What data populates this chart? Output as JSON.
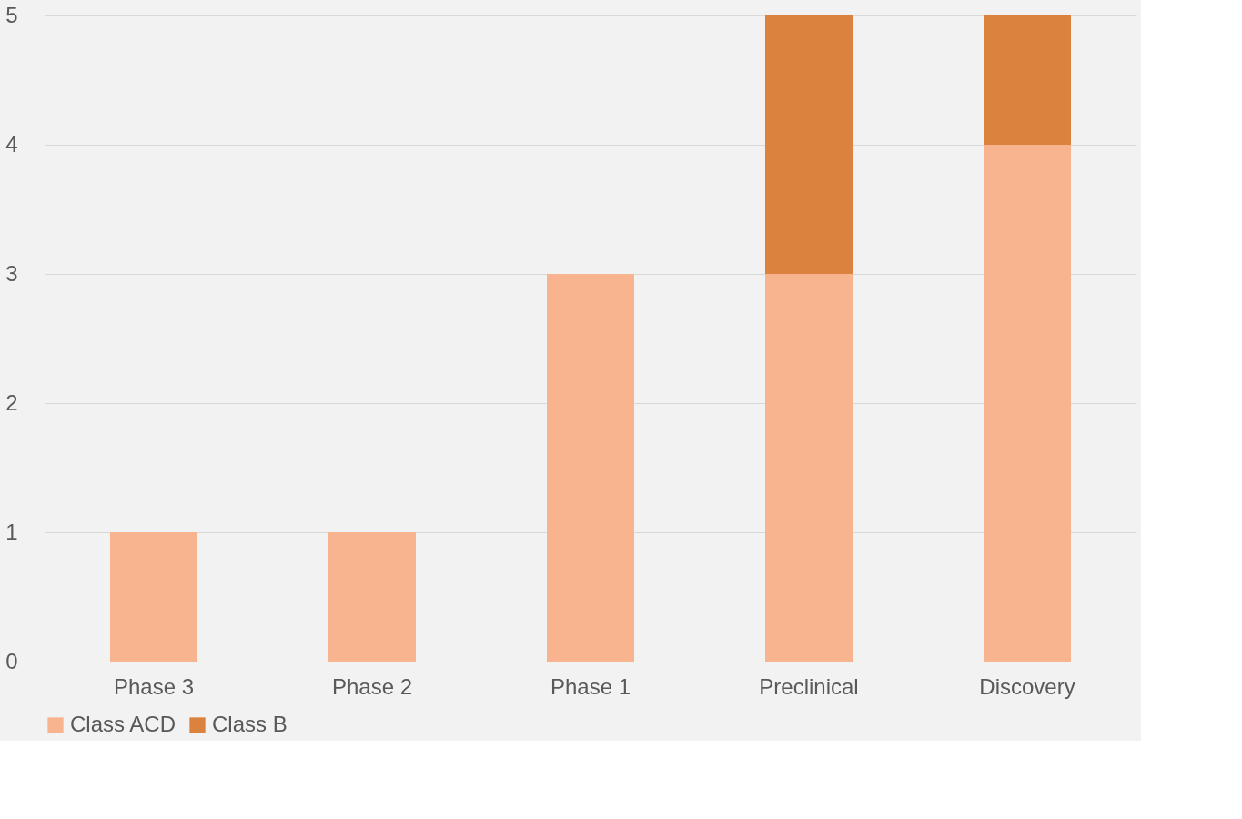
{
  "chart_data": {
    "type": "bar",
    "stacked": true,
    "categories": [
      "Phase 3",
      "Phase 2",
      "Phase 1",
      "Preclinical",
      "Discovery"
    ],
    "series": [
      {
        "name": "Class ACD",
        "color": "#f8b48e",
        "values": [
          1,
          1,
          3,
          3,
          4
        ]
      },
      {
        "name": "Class B",
        "color": "#db823e",
        "values": [
          0,
          0,
          0,
          2,
          1
        ]
      }
    ],
    "ylim": [
      0,
      5
    ],
    "yticks": [
      0,
      1,
      2,
      3,
      4,
      5
    ],
    "grid": "y",
    "legend": "bottom"
  }
}
